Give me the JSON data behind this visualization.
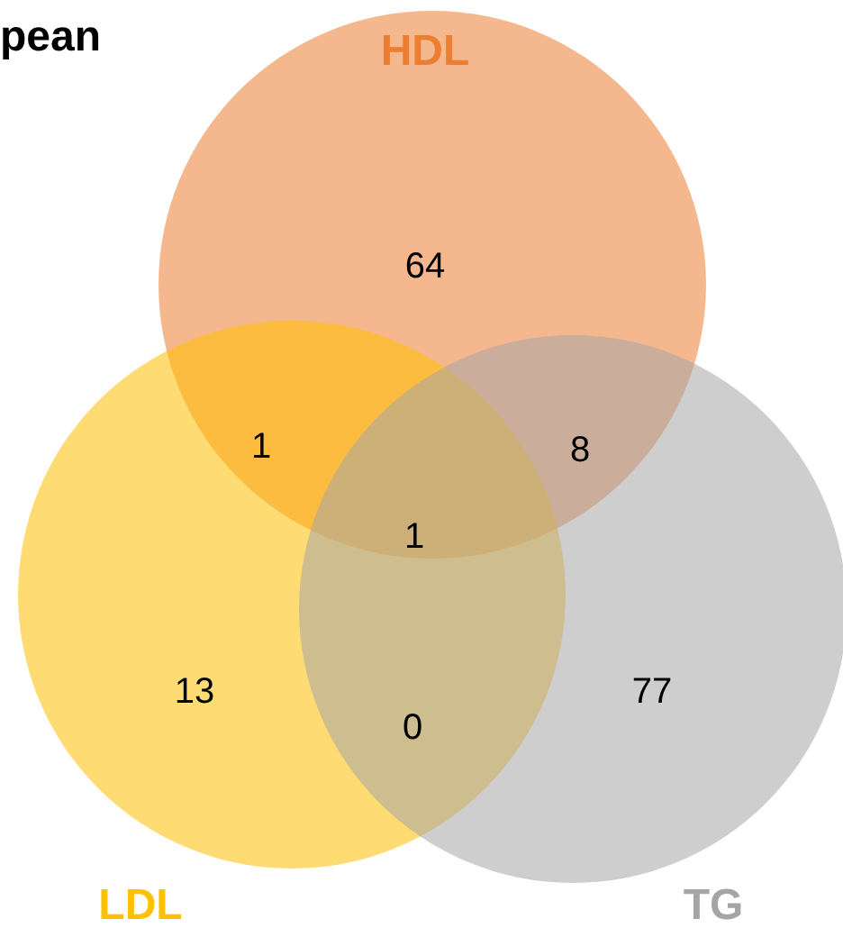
{
  "chart_data": {
    "type": "other",
    "title": "pean",
    "categories": [
      "HDL",
      "LDL",
      "TG"
    ],
    "values": [
      64,
      13,
      77
    ],
    "colors": [
      "#ed7d31",
      "#ffc000",
      "#a5a5a5"
    ],
    "data_labels": true,
    "annotations": [
      "1",
      "8",
      "0",
      "1"
    ]
  }
}
